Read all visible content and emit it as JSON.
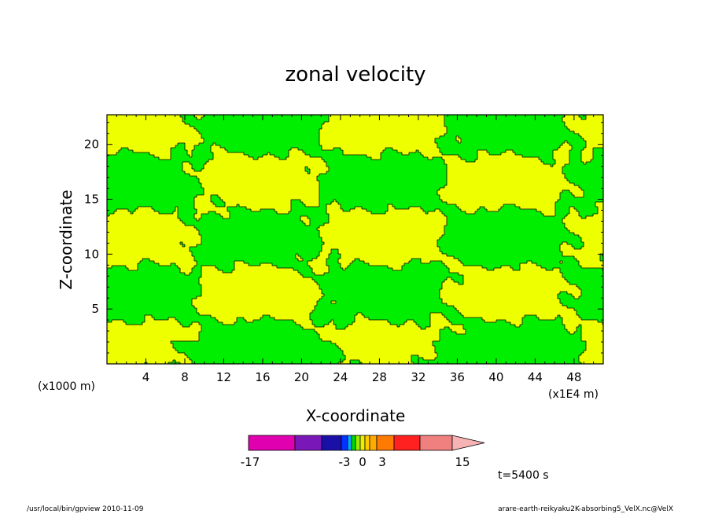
{
  "chart_data": {
    "type": "heatmap",
    "title": "zonal velocity",
    "xlabel": "X-coordinate",
    "ylabel": "Z-coordinate",
    "x_unit_label": "(x1E4 m)",
    "z_unit_label": "(x1000 m)",
    "x_ticks": [
      4,
      8,
      12,
      16,
      20,
      24,
      28,
      32,
      36,
      40,
      44,
      48
    ],
    "y_ticks": [
      5,
      10,
      15,
      20
    ],
    "xlim": [
      0,
      51
    ],
    "ylim": [
      0,
      22.7
    ],
    "field_colors": {
      "low": "#00ee00",
      "high": "#eeff00",
      "contour": "#000000"
    },
    "colorbar": {
      "tick_labels": [
        "-17",
        "-3",
        "0",
        "3",
        "15"
      ],
      "colors": [
        "#e000b0",
        "#7a17b8",
        "#1a10a8",
        "#0033ff",
        "#00aaff",
        "#00dd00",
        "#99ee00",
        "#eeee00",
        "#ffcc00",
        "#ffaa00",
        "#ff7a00",
        "#ff2020",
        "#f08080"
      ]
    },
    "time_label": "t=5400 s"
  },
  "footer": {
    "left": "/usr/local/bin/gpview  2010-11-09",
    "right": "arare-earth-reikyaku2K-absorbing5_VelX.nc@VelX"
  }
}
